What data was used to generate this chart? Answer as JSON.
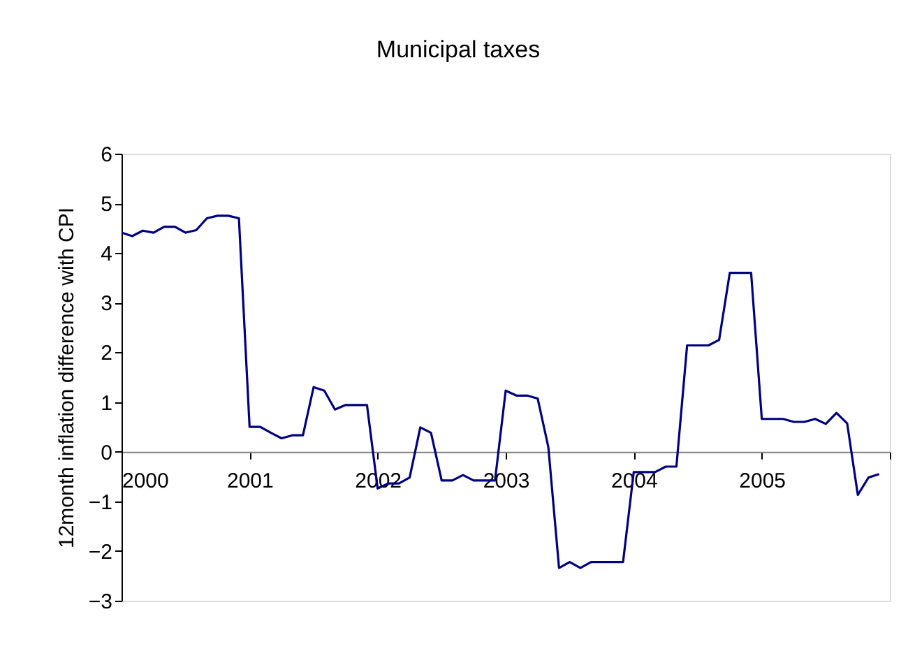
{
  "chart_data": {
    "type": "line",
    "title": "Municipal taxes",
    "ylabel": "12month inflation difference with CPI",
    "x": [
      2000.0,
      2000.0833,
      2000.1667,
      2000.25,
      2000.3333,
      2000.4167,
      2000.5,
      2000.5833,
      2000.6667,
      2000.75,
      2000.8333,
      2000.9167,
      2001.0,
      2001.0833,
      2001.1667,
      2001.25,
      2001.3333,
      2001.4167,
      2001.5,
      2001.5833,
      2001.6667,
      2001.75,
      2001.8333,
      2001.9167,
      2002.0,
      2002.0833,
      2002.1667,
      2002.25,
      2002.3333,
      2002.4167,
      2002.5,
      2002.5833,
      2002.6667,
      2002.75,
      2002.8333,
      2002.9167,
      2003.0,
      2003.0833,
      2003.1667,
      2003.25,
      2003.3333,
      2003.4167,
      2003.5,
      2003.5833,
      2003.6667,
      2003.75,
      2003.8333,
      2003.9167,
      2004.0,
      2004.0833,
      2004.1667,
      2004.25,
      2004.3333,
      2004.4167,
      2004.5,
      2004.5833,
      2004.6667,
      2004.75,
      2004.8333,
      2004.9167,
      2005.0,
      2005.0833,
      2005.1667,
      2005.25,
      2005.3333,
      2005.4167,
      2005.5,
      2005.5833,
      2005.6667,
      2005.75,
      2005.8333,
      2005.9167
    ],
    "series": [
      {
        "color": "#000080",
        "values": [
          4.41,
          4.34,
          4.45,
          4.41,
          4.53,
          4.53,
          4.41,
          4.46,
          4.7,
          4.75,
          4.75,
          4.7,
          0.5,
          0.5,
          0.38,
          0.27,
          0.33,
          0.33,
          1.3,
          1.23,
          0.85,
          0.94,
          0.94,
          0.94,
          -0.74,
          -0.64,
          -0.64,
          -0.52,
          0.49,
          0.38,
          -0.58,
          -0.58,
          -0.47,
          -0.58,
          -0.58,
          -0.58,
          1.23,
          1.13,
          1.13,
          1.07,
          0.09,
          -2.34,
          -2.22,
          -2.34,
          -2.22,
          -2.22,
          -2.22,
          -2.22,
          -0.41,
          -0.41,
          -0.41,
          -0.3,
          -0.3,
          2.14,
          2.14,
          2.14,
          2.25,
          3.6,
          3.6,
          3.6,
          0.66,
          0.66,
          0.66,
          0.6,
          0.6,
          0.66,
          0.56,
          0.78,
          0.57,
          -0.87,
          -0.52,
          -0.45
        ]
      }
    ],
    "xlim": [
      2000,
      2006
    ],
    "xticks": [
      2000,
      2001,
      2002,
      2003,
      2004,
      2005,
      {
        "value": 2006,
        "label": null
      }
    ],
    "ylim": [
      -3,
      6
    ],
    "yticks": [
      -3,
      -2,
      -1,
      0,
      1,
      2,
      3,
      4,
      5,
      6
    ],
    "grid": false,
    "marker": "none",
    "line_style": "solid"
  }
}
